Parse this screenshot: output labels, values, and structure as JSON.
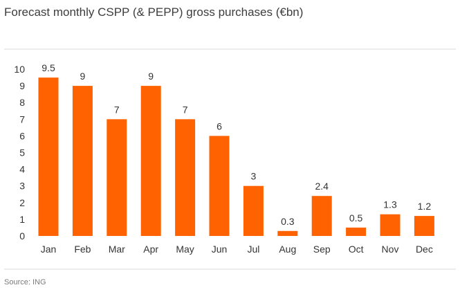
{
  "title": "Forecast monthly CSPP (& PEPP) gross purchases (€bn)",
  "source": "Source: ING",
  "colors": {
    "bar": "#ff6200",
    "rule": "#d9d9d9"
  },
  "chart_data": {
    "type": "bar",
    "title": "Forecast monthly CSPP (& PEPP) gross purchases (€bn)",
    "categories": [
      "Jan",
      "Feb",
      "Mar",
      "Apr",
      "May",
      "Jun",
      "Jul",
      "Aug",
      "Sep",
      "Oct",
      "Nov",
      "Dec"
    ],
    "values": [
      9.5,
      9,
      7,
      9,
      7,
      6,
      3,
      0.3,
      2.4,
      0.5,
      1.3,
      1.2
    ],
    "value_labels": [
      "9.5",
      "9",
      "7",
      "9",
      "7",
      "6",
      "3",
      "0.3",
      "2.4",
      "0.5",
      "1.3",
      "1.2"
    ],
    "y_ticks": [
      0,
      1,
      2,
      3,
      4,
      5,
      6,
      7,
      8,
      9,
      10
    ],
    "y_tick_labels": [
      "0",
      "1",
      "2",
      "3",
      "4",
      "5",
      "6",
      "7",
      "8",
      "9",
      "10"
    ],
    "ylim": [
      0,
      10
    ],
    "xlabel": "",
    "ylabel": "",
    "grid": false,
    "legend": "none"
  }
}
